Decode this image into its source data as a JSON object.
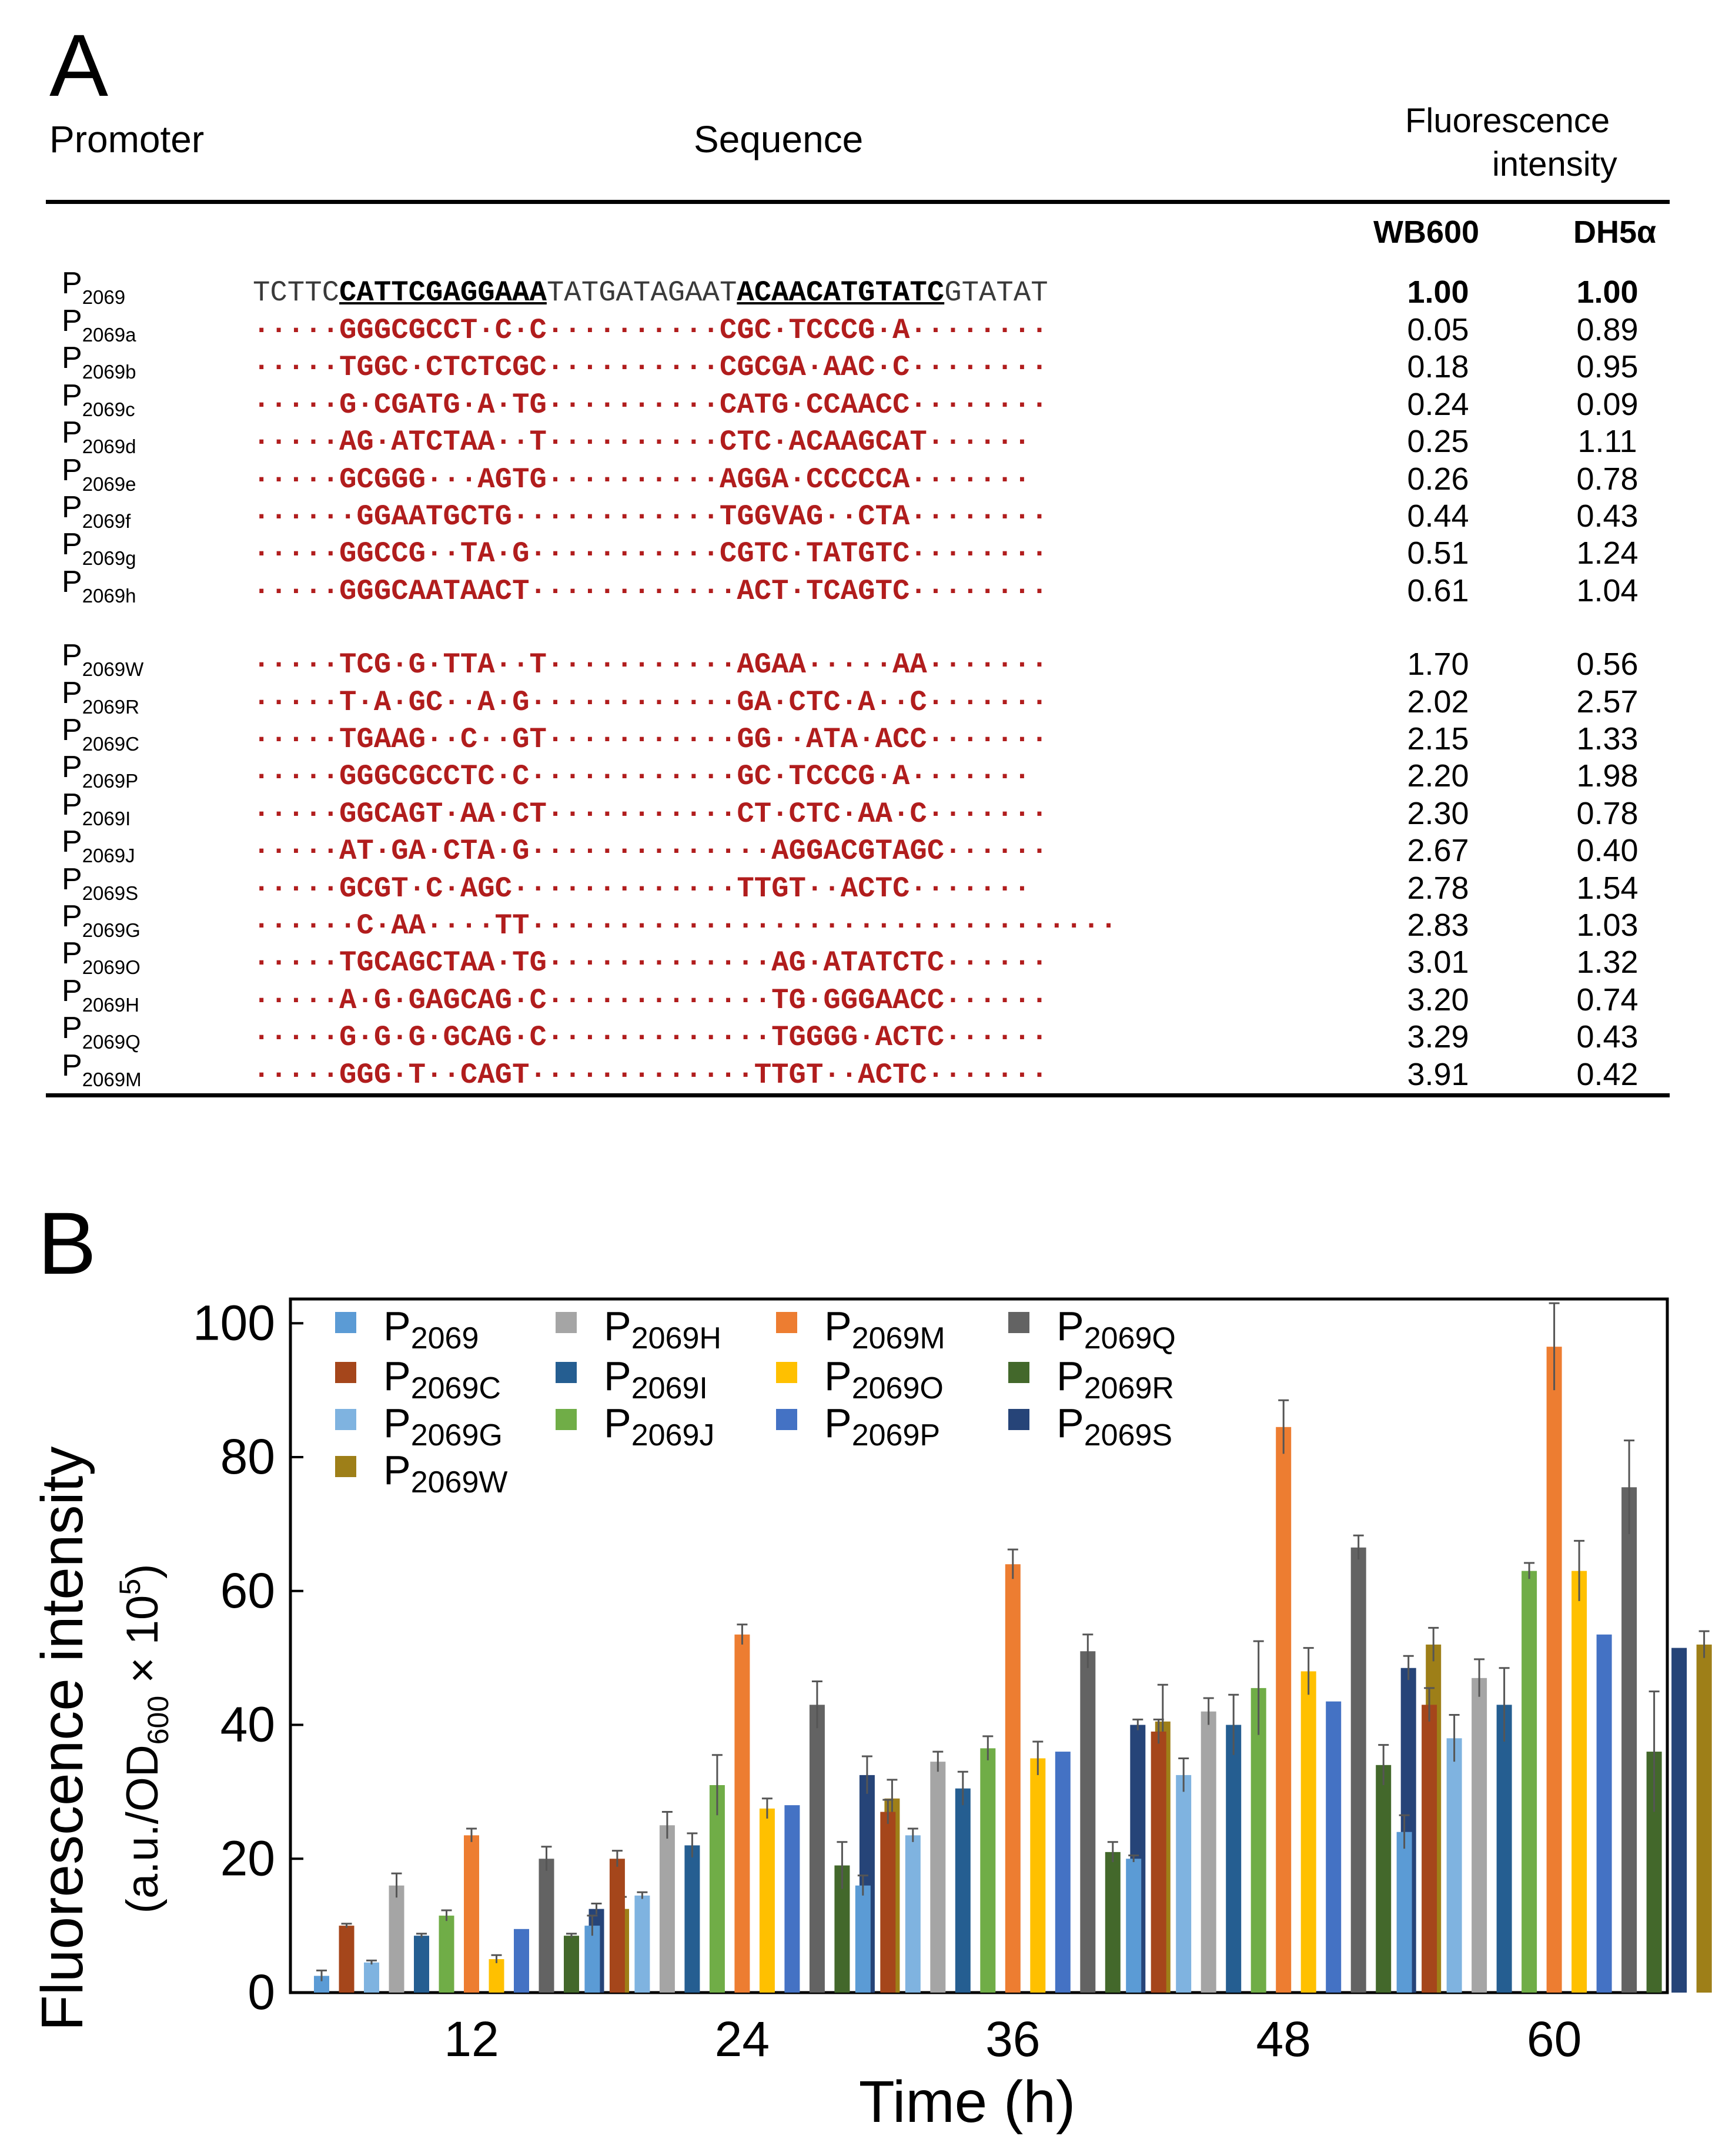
{
  "panel_a": {
    "label": "A",
    "headers": {
      "promoter": "Promoter",
      "sequence": "Sequence",
      "fluor_line1": "Fluorescence",
      "fluor_line2": "intensity",
      "col1": "WB600",
      "col2": "DH5α"
    },
    "reference": {
      "prefix": "P",
      "sub": "2069",
      "seq": {
        "a": "TCTTC",
        "b": "CATTCGAGGAAA",
        "c": "TATGATAGAAT",
        "d": "ACAACATGTATC",
        "e": "GTATAT"
      },
      "wb600": "1.00",
      "dh5a": "1.00"
    },
    "rows": [
      {
        "prefix": "P",
        "sub": "2069a",
        "seq": "·····GGGCGCCT·C·C··········CGC·TCCCG·A········",
        "wb600": "0.05",
        "dh5a": "0.89"
      },
      {
        "prefix": "P",
        "sub": "2069b",
        "seq": "·····TGGC·CTCTCGC··········CGCGA·AAC·C········",
        "wb600": "0.18",
        "dh5a": "0.95"
      },
      {
        "prefix": "P",
        "sub": "2069c",
        "seq": "·····G·CGATG·A·TG··········CATG·CCAACC········",
        "wb600": "0.24",
        "dh5a": "0.09"
      },
      {
        "prefix": "P",
        "sub": "2069d",
        "seq": "·····AG·ATCTAA··T··········CTC·ACAAGCAT······",
        "wb600": "0.25",
        "dh5a": "1.11"
      },
      {
        "prefix": "P",
        "sub": "2069e",
        "seq": "·····GCGGG···AGTG··········AGGA·CCCCCA·······",
        "wb600": "0.26",
        "dh5a": "0.78"
      },
      {
        "prefix": "P",
        "sub": "2069f",
        "seq": "······GGAATGCTG············TGGVAG··CTA········",
        "wb600": "0.44",
        "dh5a": "0.43"
      },
      {
        "prefix": "P",
        "sub": "2069g",
        "seq": "·····GGCCG··TA·G···········CGTC·TATGTC········",
        "wb600": "0.51",
        "dh5a": "1.24"
      },
      {
        "prefix": "P",
        "sub": "2069h",
        "seq": "·····GGGCAATAACT············ACT·TCAGTC········",
        "wb600": "0.61",
        "dh5a": "1.04"
      },
      {
        "prefix": "P",
        "sub": "2069W",
        "seq": "·····TCG·G·TTA··T···········AGAA·····AA·······",
        "wb600": "1.70",
        "dh5a": "0.56"
      },
      {
        "prefix": "P",
        "sub": "2069R",
        "seq": "·····T·A·GC··A·G············GA·CTC·A··C·······",
        "wb600": "2.02",
        "dh5a": "2.57"
      },
      {
        "prefix": "P",
        "sub": "2069C",
        "seq": "·····TGAAG··C··GT···········GG··ATA·ACC·······",
        "wb600": "2.15",
        "dh5a": "1.33"
      },
      {
        "prefix": "P",
        "sub": "2069P",
        "seq": "·····GGGCGCCTC·C············GC·TCCCG·A·······",
        "wb600": "2.20",
        "dh5a": "1.98"
      },
      {
        "prefix": "P",
        "sub": "2069I",
        "seq": "·····GGCAGT·AA·CT···········CT·CTC·AA·C·······",
        "wb600": "2.30",
        "dh5a": "0.78"
      },
      {
        "prefix": "P",
        "sub": "2069J",
        "seq": "·····AT·GA·CTA·G··············AGGACGTAGC······",
        "wb600": "2.67",
        "dh5a": "0.40"
      },
      {
        "prefix": "P",
        "sub": "2069S",
        "seq": "·····GCGT·C·AGC·············TTGT··ACTC·······",
        "wb600": "2.78",
        "dh5a": "1.54"
      },
      {
        "prefix": "P",
        "sub": "2069G",
        "seq": "······C·AA····TT··································",
        "wb600": "2.83",
        "dh5a": "1.03"
      },
      {
        "prefix": "P",
        "sub": "2069O",
        "seq": "·····TGCAGCTAA·TG·············AG·ATATCTC······",
        "wb600": "3.01",
        "dh5a": "1.32"
      },
      {
        "prefix": "P",
        "sub": "2069H",
        "seq": "·····A·G·GAGCAG·C·············TG·GGGAACC······",
        "wb600": "3.20",
        "dh5a": "0.74"
      },
      {
        "prefix": "P",
        "sub": "2069Q",
        "seq": "·····G·G·G·GCAG·C·············TGGGG·ACTC······",
        "wb600": "3.29",
        "dh5a": "0.43"
      },
      {
        "prefix": "P",
        "sub": "2069M",
        "seq": "·····GGG·T··CAGT·············TTGT··ACTC·······",
        "wb600": "3.91",
        "dh5a": "0.42"
      }
    ]
  },
  "panel_b": {
    "label": "B"
  },
  "chart_data": {
    "type": "bar",
    "title": "",
    "xlabel": "Time (h)",
    "ylabel_main": "Fluorescence intensity",
    "ylabel_unit": "(a.u./OD600 × 10^5)",
    "ylabel_unit_parts": {
      "open": "(a.u./OD",
      "sub": "600",
      "times": " × 10",
      "sup": "5",
      "close": ")"
    },
    "ylim": [
      0,
      100
    ],
    "yticks": [
      0,
      20,
      40,
      60,
      80,
      100
    ],
    "categories": [
      "12",
      "24",
      "36",
      "48",
      "60"
    ],
    "legend_position": "top-left",
    "series": [
      {
        "name": "P2069",
        "prefix": "P",
        "sub": "2069",
        "color": "#5b9bd5",
        "values": [
          2.5,
          10,
          16,
          20,
          24
        ],
        "errors": [
          0.8,
          1.5,
          1.5,
          0.5,
          2.5
        ]
      },
      {
        "name": "P2069C",
        "prefix": "P",
        "sub": "2069C",
        "color": "#a5461b",
        "values": [
          10,
          20,
          27,
          39,
          43
        ],
        "errors": [
          0.3,
          1.2,
          1.8,
          1.8,
          2.5
        ]
      },
      {
        "name": "P2069G",
        "prefix": "P",
        "sub": "2069G",
        "color": "#7fb3e0",
        "values": [
          4.5,
          14.5,
          23.5,
          32.5,
          38
        ],
        "errors": [
          0.3,
          0.5,
          1.0,
          2.5,
          3.5
        ]
      },
      {
        "name": "P2069H",
        "prefix": "P",
        "sub": "2069H",
        "color": "#a5a5a5",
        "values": [
          16,
          25,
          34.5,
          42,
          47
        ],
        "errors": [
          1.8,
          2.0,
          1.5,
          2.0,
          2.8
        ]
      },
      {
        "name": "P2069I",
        "prefix": "P",
        "sub": "2069I",
        "color": "#255e91",
        "values": [
          8.5,
          22,
          30.5,
          40,
          43
        ],
        "errors": [
          0.3,
          1.8,
          2.5,
          4.5,
          5.5
        ]
      },
      {
        "name": "P2069J",
        "prefix": "P",
        "sub": "2069J",
        "color": "#70ad47",
        "values": [
          11.5,
          31,
          36.5,
          45.5,
          63
        ],
        "errors": [
          0.8,
          4.5,
          1.8,
          7.0,
          1.2
        ]
      },
      {
        "name": "P2069M",
        "prefix": "P",
        "sub": "2069M",
        "color": "#ed7d31",
        "values": [
          23.5,
          53.5,
          64,
          84.5,
          96.5
        ],
        "errors": [
          1.0,
          1.5,
          2.2,
          4.0,
          6.5
        ]
      },
      {
        "name": "P2069O",
        "prefix": "P",
        "sub": "2069O",
        "color": "#ffc000",
        "values": [
          5,
          27.5,
          35,
          48,
          63
        ],
        "errors": [
          0.6,
          1.5,
          2.5,
          3.5,
          4.5
        ]
      },
      {
        "name": "P2069P",
        "prefix": "P",
        "sub": "2069P",
        "color": "#4472c4",
        "values": [
          9.5,
          28,
          36,
          43.5,
          53.5
        ],
        "errors": [
          0,
          0,
          0,
          0,
          0
        ]
      },
      {
        "name": "P2069Q",
        "prefix": "P",
        "sub": "2069Q",
        "color": "#636363",
        "values": [
          20,
          43,
          51,
          66.5,
          75.5
        ],
        "errors": [
          1.8,
          3.5,
          2.5,
          1.8,
          7.0
        ]
      },
      {
        "name": "P2069R",
        "prefix": "P",
        "sub": "2069R",
        "color": "#43682b",
        "values": [
          8.5,
          19,
          21,
          34,
          36
        ],
        "errors": [
          0.3,
          3.5,
          1.5,
          3.0,
          9.0
        ]
      },
      {
        "name": "P2069S",
        "prefix": "P",
        "sub": "2069S",
        "color": "#264478",
        "values": [
          12.5,
          32.5,
          40,
          48.5,
          51.5
        ],
        "errors": [
          0.8,
          2.8,
          0.8,
          1.8,
          0
        ]
      },
      {
        "name": "P2069W",
        "prefix": "P",
        "sub": "2069W",
        "color": "#9e7f18",
        "values": [
          12.5,
          29,
          40.5,
          52,
          52
        ],
        "errors": [
          1.8,
          2.8,
          5.5,
          2.5,
          2.0
        ]
      }
    ],
    "legend_order": [
      "P2069",
      "P2069C",
      "P2069G",
      "P2069H",
      "P2069I",
      "P2069J",
      "P2069M",
      "P2069O",
      "P2069P",
      "P2069Q",
      "P2069R",
      "P2069S",
      "P2069W"
    ]
  }
}
